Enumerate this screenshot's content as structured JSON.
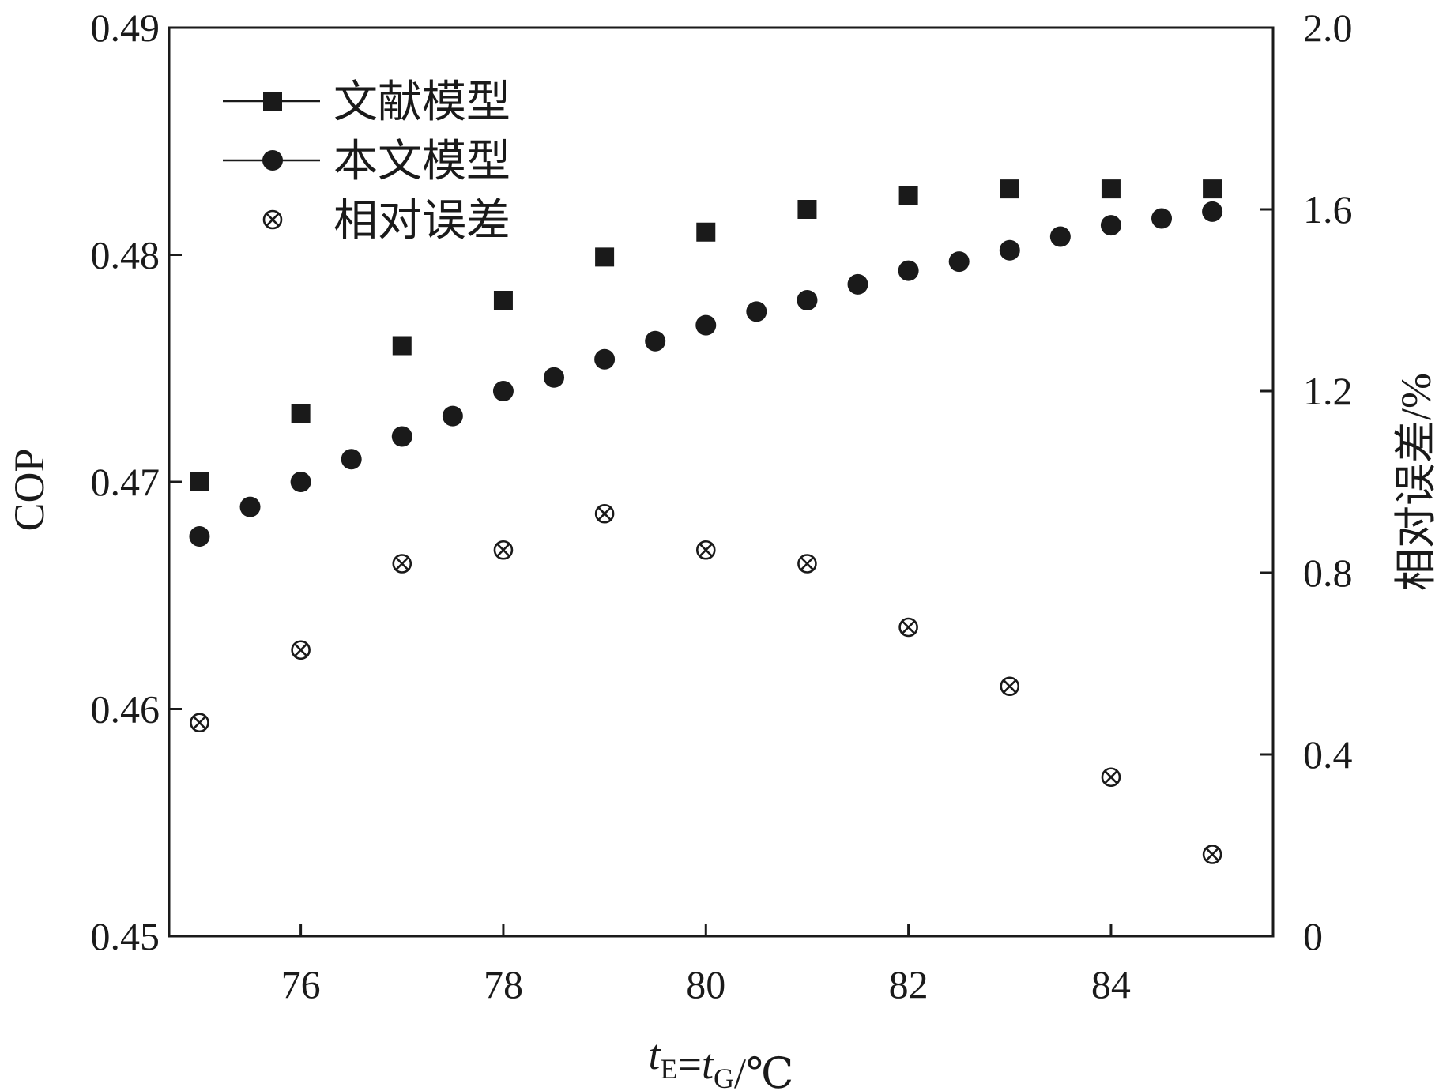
{
  "chart_data": {
    "type": "scatter",
    "xlabel": {
      "parts": [
        {
          "text": "t",
          "italic": true
        },
        {
          "text": "E",
          "sub": true
        },
        {
          "text": "="
        },
        {
          "text": "t",
          "italic": true
        },
        {
          "text": "G",
          "sub": true
        },
        {
          "text": "/℃"
        }
      ]
    },
    "ylabel": "COP",
    "y2label": "相对误差/%",
    "xlim": [
      74.7,
      85.6
    ],
    "ylim": [
      0.45,
      0.49
    ],
    "y2lim": [
      0,
      2.0
    ],
    "xticks": [
      76,
      78,
      80,
      82,
      84
    ],
    "xtick_labels": [
      "76",
      "78",
      "80",
      "82",
      "84"
    ],
    "yticks": [
      0.45,
      0.46,
      0.47,
      0.48,
      0.49
    ],
    "ytick_labels": [
      "0.45",
      "0.46",
      "0.47",
      "0.48",
      "0.49"
    ],
    "y2ticks": [
      0,
      0.4,
      0.8,
      1.2,
      1.6,
      2.0
    ],
    "y2tick_labels": [
      "0",
      "0.4",
      "0.8",
      "1.2",
      "1.6",
      "2.0"
    ],
    "legend_position": "top-left",
    "series": [
      {
        "name": "文献模型",
        "marker": "square",
        "axis": "left",
        "color": "#1a1a1a",
        "x": [
          75,
          76,
          77,
          78,
          79,
          80,
          81,
          82,
          83,
          84,
          85
        ],
        "y": [
          0.47,
          0.473,
          0.476,
          0.478,
          0.4799,
          0.481,
          0.482,
          0.4826,
          0.4829,
          0.4829,
          0.4829
        ]
      },
      {
        "name": "本文模型",
        "marker": "circle",
        "axis": "left",
        "color": "#1a1a1a",
        "x": [
          75,
          75.5,
          76,
          76.5,
          77,
          77.5,
          78,
          78.5,
          79,
          79.5,
          80,
          80.5,
          81,
          81.5,
          82,
          82.5,
          83,
          83.5,
          84,
          84.5,
          85
        ],
        "y": [
          0.4676,
          0.4689,
          0.47,
          0.471,
          0.472,
          0.4729,
          0.474,
          0.4746,
          0.4754,
          0.4762,
          0.4769,
          0.4775,
          0.478,
          0.4787,
          0.4793,
          0.4797,
          0.4802,
          0.4808,
          0.4813,
          0.4816,
          0.4819
        ]
      },
      {
        "name": "相对误差",
        "marker": "circle-x",
        "axis": "right",
        "color": "#1a1a1a",
        "x": [
          75,
          76,
          77,
          78,
          79,
          80,
          81,
          82,
          83,
          84,
          85
        ],
        "y": [
          0.47,
          0.63,
          0.82,
          0.85,
          0.93,
          0.85,
          0.82,
          0.68,
          0.55,
          0.35,
          0.18
        ]
      }
    ]
  }
}
